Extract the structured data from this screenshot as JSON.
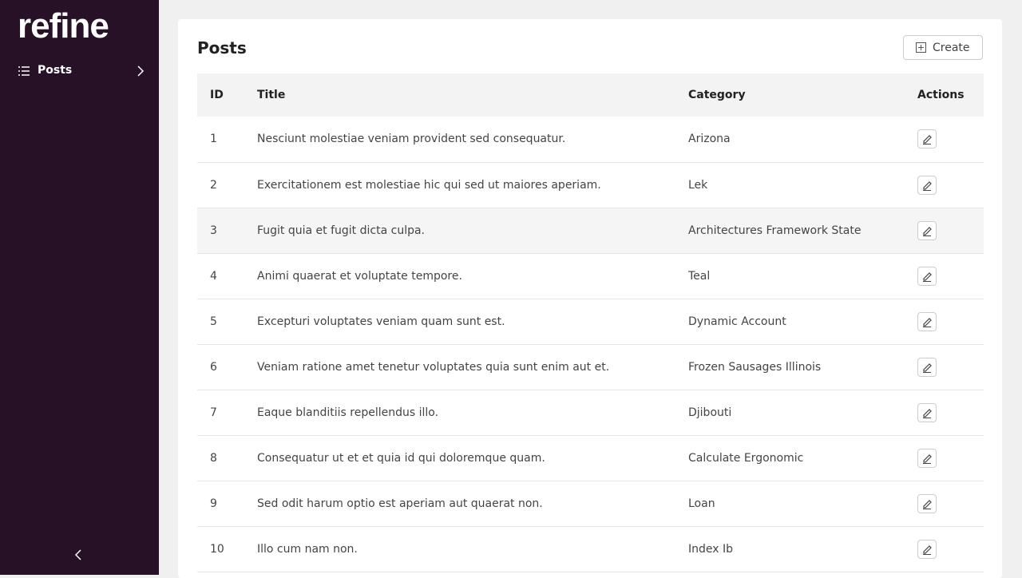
{
  "sidebar": {
    "logo": "refine",
    "nav": [
      {
        "label": "Posts"
      }
    ]
  },
  "page": {
    "title": "Posts",
    "create_button": "Create"
  },
  "table": {
    "headers": [
      "ID",
      "Title",
      "Category",
      "Actions"
    ],
    "rows": [
      [
        1,
        "Nesciunt molestiae veniam provident sed consequatur.",
        "Arizona"
      ],
      [
        2,
        "Exercitationem est molestiae hic qui sed ut maiores aperiam.",
        "Lek"
      ],
      [
        3,
        "Fugit quia et fugit dicta culpa.",
        "Architectures Framework State"
      ],
      [
        4,
        "Animi quaerat et voluptate tempore.",
        "Teal"
      ],
      [
        5,
        "Excepturi voluptates veniam quam sunt est.",
        "Dynamic Account"
      ],
      [
        6,
        "Veniam ratione amet tenetur voluptates quia sunt enim aut et.",
        "Frozen Sausages Illinois"
      ],
      [
        7,
        "Eaque blanditiis repellendus illo.",
        "Djibouti"
      ],
      [
        8,
        "Consequatur ut et et quia id qui doloremque quam.",
        "Calculate Ergonomic"
      ],
      [
        9,
        "Sed odit harum optio est aperiam aut quaerat non.",
        "Loan"
      ],
      [
        10,
        "Illo cum nam non.",
        "Index Ib"
      ]
    ]
  }
}
